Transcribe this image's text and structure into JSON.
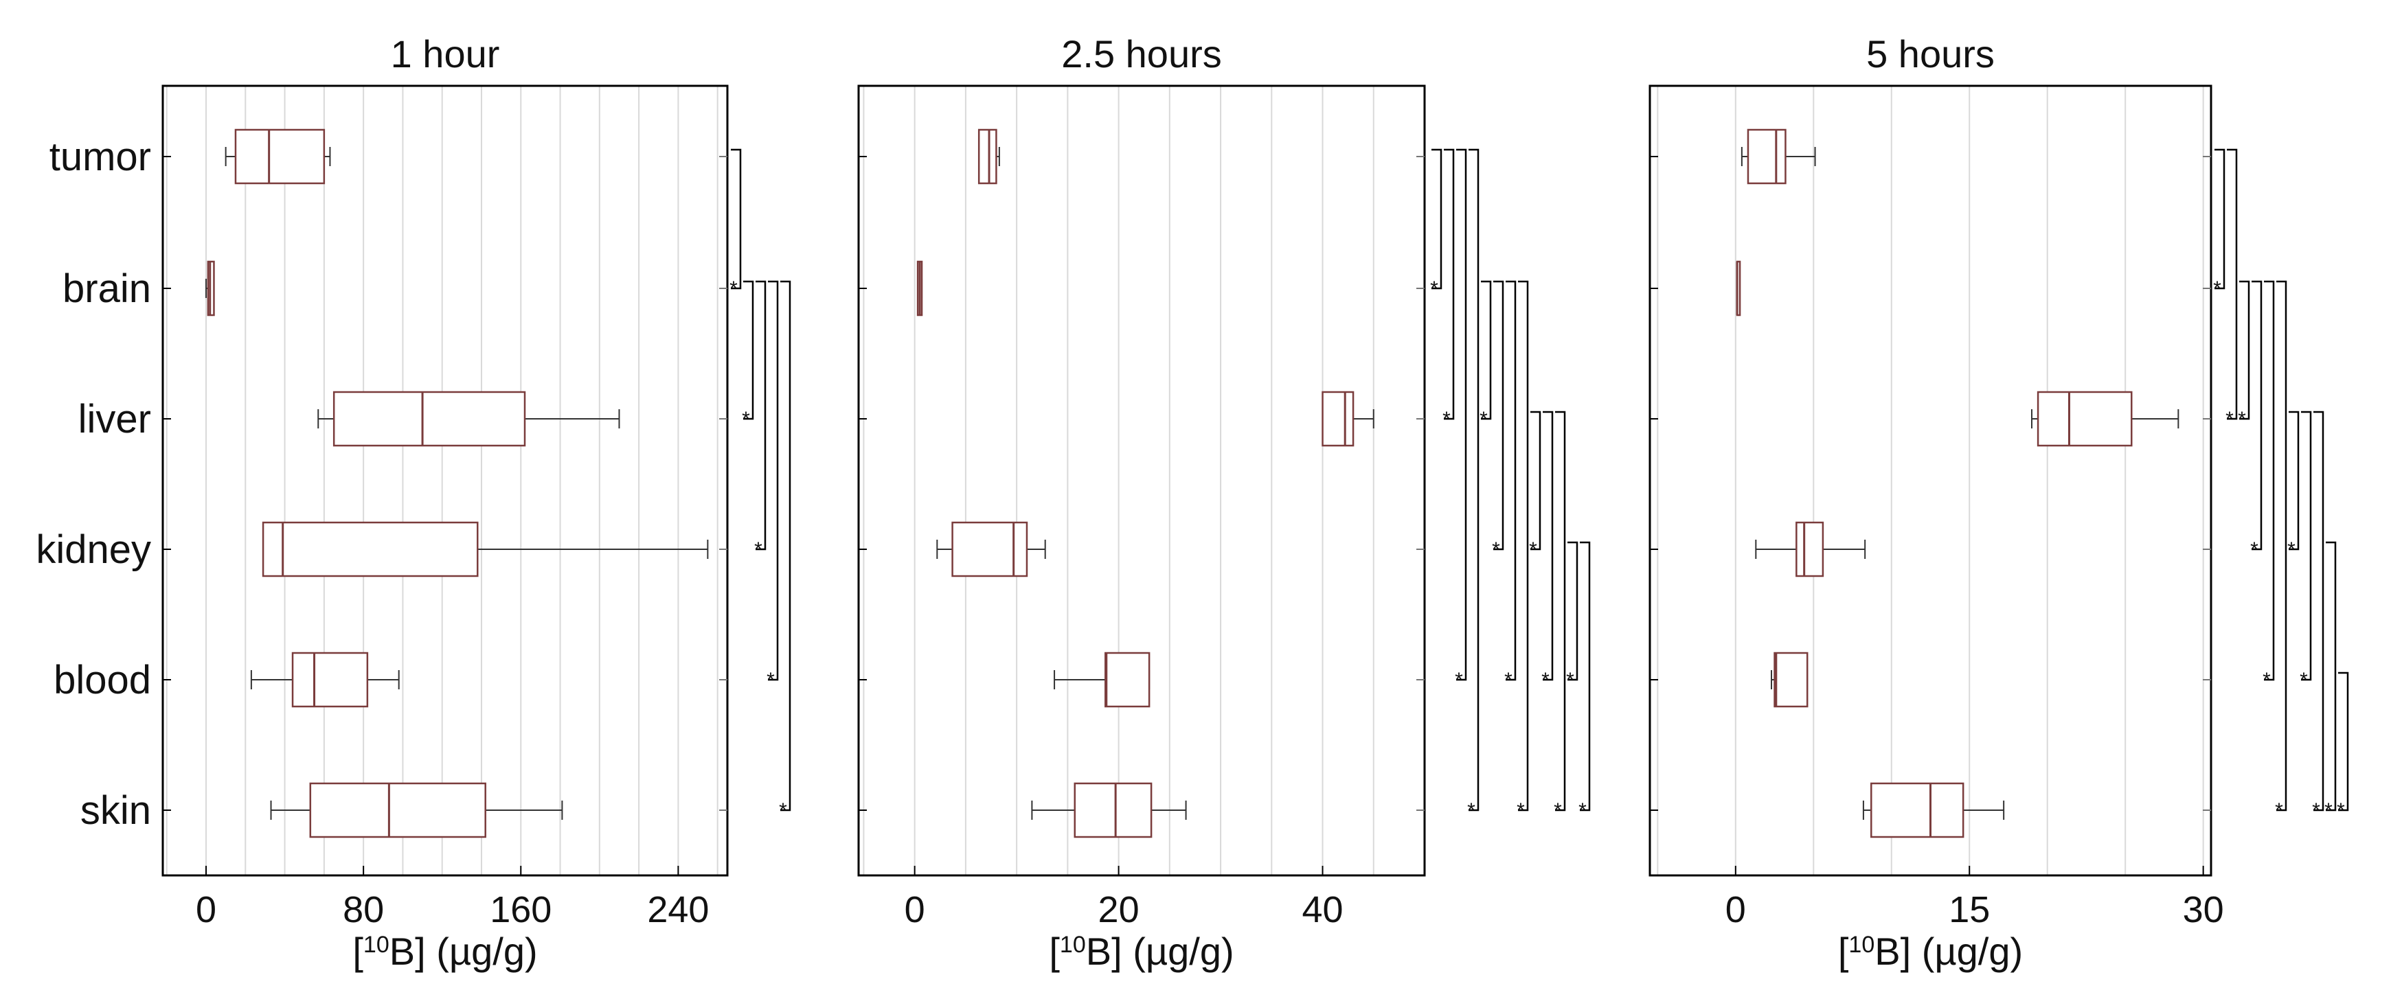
{
  "chart_data": [
    {
      "type": "boxplot",
      "title": "1 hour",
      "xlabel": "(µg/g)",
      "xlabel_bracket": "[",
      "xlabel_isotope": "10",
      "xlabel_element": "B]",
      "categories": [
        "tumor",
        "brain",
        "liver",
        "kidney",
        "blood",
        "skin"
      ],
      "xlim": [
        -22,
        265
      ],
      "xticks": [
        0,
        80,
        160,
        240
      ],
      "xtick_labels": [
        "0",
        "80",
        "160",
        "240"
      ],
      "minor_grid_step": 20,
      "boxes": [
        {
          "min": 10,
          "q1": 15,
          "median": 32,
          "q3": 60,
          "max": 63
        },
        {
          "min": 0,
          "q1": 1,
          "median": 2,
          "q3": 4,
          "max": 4
        },
        {
          "min": 57,
          "q1": 65,
          "median": 110,
          "q3": 162,
          "max": 210
        },
        {
          "min": 29,
          "q1": 29,
          "median": 39,
          "q3": 138,
          "max": 255
        },
        {
          "min": 23,
          "q1": 44,
          "median": 55,
          "q3": 82,
          "max": 98
        },
        {
          "min": 33,
          "q1": 53,
          "median": 93,
          "q3": 142,
          "max": 181
        }
      ],
      "significance_marker": "*",
      "significance_brackets": [
        [
          0,
          1
        ],
        [
          1,
          2
        ],
        [
          1,
          3
        ],
        [
          1,
          4
        ],
        [
          1,
          5
        ]
      ]
    },
    {
      "type": "boxplot",
      "title": "2.5 hours",
      "xlabel": "(µg/g)",
      "xlabel_bracket": "[",
      "xlabel_isotope": "10",
      "xlabel_element": "B]",
      "categories": [
        "tumor",
        "brain",
        "liver",
        "kidney",
        "blood",
        "skin"
      ],
      "xlim": [
        -5.5,
        50
      ],
      "xticks": [
        0,
        20,
        40
      ],
      "xtick_labels": [
        "0",
        "20",
        "40"
      ],
      "minor_grid_step": 5,
      "boxes": [
        {
          "min": 6.3,
          "q1": 6.3,
          "median": 7.3,
          "q3": 8.0,
          "max": 8.3
        },
        {
          "min": 0.3,
          "q1": 0.3,
          "median": 0.5,
          "q3": 0.7,
          "max": 0.7
        },
        {
          "min": 40,
          "q1": 40,
          "median": 42.2,
          "q3": 43,
          "max": 45
        },
        {
          "min": 2.2,
          "q1": 3.7,
          "median": 9.7,
          "q3": 11,
          "max": 12.8
        },
        {
          "min": 13.7,
          "q1": 18.7,
          "median": 18.8,
          "q3": 23,
          "max": 23
        },
        {
          "min": 11.5,
          "q1": 15.7,
          "median": 19.7,
          "q3": 23.2,
          "max": 26.6
        }
      ],
      "significance_marker": "*",
      "significance_brackets": [
        [
          0,
          1
        ],
        [
          0,
          2
        ],
        [
          0,
          4
        ],
        [
          0,
          5
        ],
        [
          1,
          2
        ],
        [
          1,
          3
        ],
        [
          1,
          4
        ],
        [
          1,
          5
        ],
        [
          2,
          3
        ],
        [
          2,
          4
        ],
        [
          2,
          5
        ],
        [
          3,
          4
        ],
        [
          3,
          5
        ]
      ]
    },
    {
      "type": "boxplot",
      "title": "5 hours",
      "xlabel": "(µg/g)",
      "xlabel_bracket": "[",
      "xlabel_isotope": "10",
      "xlabel_element": "B]",
      "categories": [
        "tumor",
        "brain",
        "liver",
        "kidney",
        "blood",
        "skin"
      ],
      "xlim": [
        -5.5,
        30.5
      ],
      "xticks": [
        0,
        15,
        30
      ],
      "xtick_labels": [
        "0",
        "15",
        "30"
      ],
      "minor_grid_step": 5,
      "boxes": [
        {
          "min": 0.4,
          "q1": 0.8,
          "median": 2.6,
          "q3": 3.2,
          "max": 5.1
        },
        {
          "min": 0.1,
          "q1": 0.1,
          "median": 0.1,
          "q3": 0.2,
          "max": 0.2
        },
        {
          "min": 19,
          "q1": 19.4,
          "median": 21.4,
          "q3": 25.4,
          "max": 28.4
        },
        {
          "min": 1.3,
          "q1": 3.9,
          "median": 4.4,
          "q3": 5.6,
          "max": 8.3
        },
        {
          "min": 2.3,
          "q1": 2.5,
          "median": 2.6,
          "q3": 4.6,
          "max": 4.6
        },
        {
          "min": 8.2,
          "q1": 8.7,
          "median": 12.5,
          "q3": 14.6,
          "max": 17.2
        }
      ],
      "significance_marker": "*",
      "significance_brackets": [
        [
          0,
          1
        ],
        [
          0,
          2
        ],
        [
          1,
          2
        ],
        [
          1,
          3
        ],
        [
          1,
          4
        ],
        [
          1,
          5
        ],
        [
          2,
          3
        ],
        [
          2,
          4
        ],
        [
          2,
          5
        ],
        [
          3,
          5
        ],
        [
          4,
          5
        ]
      ]
    }
  ],
  "colors": {
    "box": "#7a3c3c",
    "grid": "#d9d9d9",
    "axis": "#000000",
    "bracket": "#000000"
  }
}
